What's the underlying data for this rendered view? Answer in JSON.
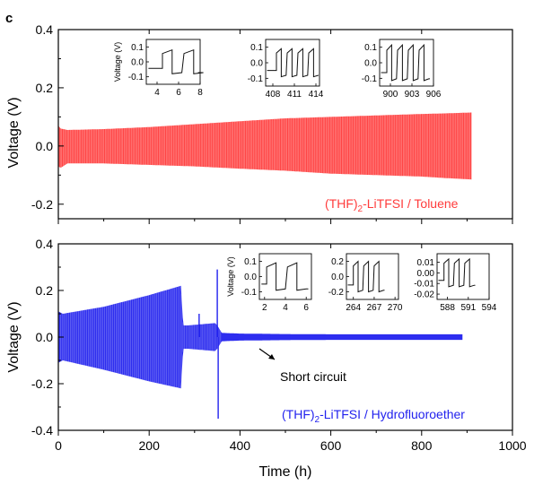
{
  "panel_label": "c",
  "x_axis": {
    "label": "Time (h)",
    "range": [
      0,
      1000
    ],
    "ticks": [
      0,
      200,
      400,
      600,
      800,
      1000
    ]
  },
  "chart_data": [
    {
      "type": "line",
      "ylabel": "Voltage (V)",
      "xlabel": "Time (h)",
      "xlim": [
        0,
        1000
      ],
      "ylim": [
        -0.25,
        0.4
      ],
      "yticks": [
        -0.2,
        0.0,
        0.2,
        0.4
      ],
      "yticklabels": [
        "-0.2",
        "0.0",
        "0.2",
        "0.4"
      ],
      "xticks": [
        0,
        200,
        400,
        600,
        800,
        1000
      ],
      "grid": false,
      "series": [
        {
          "name": "(THF)₂-LiTFSI / Toluene",
          "color": "#ff3b3b",
          "envelope": {
            "t": [
              0,
              5,
              20,
              100,
              200,
              300,
              400,
              500,
              600,
              700,
              800,
              850,
              910
            ],
            "v_upper": [
              0.07,
              0.06,
              0.055,
              0.058,
              0.065,
              0.075,
              0.085,
              0.095,
              0.1,
              0.105,
              0.11,
              0.112,
              0.115
            ],
            "v_lower": [
              -0.07,
              -0.075,
              -0.06,
              -0.06,
              -0.065,
              -0.07,
              -0.078,
              -0.085,
              -0.095,
              -0.1,
              -0.105,
              -0.11,
              -0.115
            ]
          }
        }
      ],
      "annotation": {
        "text": "(THF)",
        "sub": "2",
        "rest": "-LiTFSI / Toluene",
        "color": "#ff3b3b"
      },
      "insets": [
        {
          "ylabel": "Voltage (V)",
          "xticks": [
            4,
            6,
            8
          ],
          "xlim": [
            3,
            8
          ],
          "yticks": [
            0.1,
            0.0,
            -0.1
          ],
          "yticklabels": [
            "0.1",
            "0.0",
            "-0.1"
          ],
          "ylim": [
            -0.15,
            0.15
          ],
          "cycle_start": 4.5,
          "period": 2,
          "cycles": 2,
          "amp": 0.08
        },
        {
          "ylabel": "",
          "xticks": [
            408,
            411,
            414
          ],
          "xlim": [
            407,
            414.5
          ],
          "yticks": [
            0.1,
            0.0,
            -0.1
          ],
          "yticklabels": [
            "0.1",
            "0.0",
            "-0.1"
          ],
          "ylim": [
            -0.15,
            0.15
          ],
          "cycle_start": 408.5,
          "period": 1.5,
          "cycles": 4,
          "amp": 0.09
        },
        {
          "ylabel": "",
          "xticks": [
            900,
            903,
            906
          ],
          "xlim": [
            898.5,
            906
          ],
          "yticks": [
            0.1,
            0.0,
            -0.1
          ],
          "yticklabels": [
            "0.1",
            "0.0",
            "-0.1"
          ],
          "ylim": [
            -0.15,
            0.15
          ],
          "cycle_start": 899.5,
          "period": 1.5,
          "cycles": 4,
          "amp": 0.115
        }
      ]
    },
    {
      "type": "line",
      "ylabel": "Voltage (V)",
      "xlabel": "Time (h)",
      "xlim": [
        0,
        1000
      ],
      "ylim": [
        -0.4,
        0.4
      ],
      "yticks": [
        -0.4,
        -0.2,
        0.0,
        0.2,
        0.4
      ],
      "yticklabels": [
        "-0.4",
        "-0.2",
        "0.0",
        "0.2",
        "0.4"
      ],
      "xticks": [
        0,
        200,
        400,
        600,
        800,
        1000
      ],
      "xticklabels": [
        "0",
        "200",
        "400",
        "600",
        "800",
        "1000"
      ],
      "grid": false,
      "series": [
        {
          "name": "(THF)₂-LiTFSI / Hydrofluoroether",
          "color": "#2222ee",
          "envelope": {
            "t": [
              0,
              10,
              100,
              200,
              270,
              275,
              285,
              345,
              350,
              360,
              400,
              500,
              600,
              700,
              800,
              890
            ],
            "v_upper": [
              0.11,
              0.1,
              0.13,
              0.18,
              0.22,
              0.05,
              0.05,
              0.06,
              0.05,
              0.018,
              0.015,
              0.013,
              0.012,
              0.012,
              0.012,
              0.012
            ],
            "v_lower": [
              -0.11,
              -0.1,
              -0.14,
              -0.19,
              -0.22,
              -0.05,
              -0.05,
              -0.06,
              -0.05,
              -0.018,
              -0.015,
              -0.013,
              -0.012,
              -0.012,
              -0.012,
              -0.012
            ]
          },
          "spikes": [
            {
              "t": 310,
              "v": 0.1
            },
            {
              "t": 350,
              "v": 0.29
            },
            {
              "t": 352,
              "v": -0.35
            }
          ]
        }
      ],
      "annotation": {
        "text": "(THF)",
        "sub": "2",
        "rest": "-LiTFSI / Hydrofluoroether",
        "color": "#2222ee"
      },
      "short_circuit_label": "Short circuit",
      "insets": [
        {
          "ylabel": "Voltage (V)",
          "xticks": [
            2,
            4,
            6
          ],
          "xlim": [
            1.5,
            6.5
          ],
          "yticks": [
            0.1,
            0.0,
            -0.1
          ],
          "yticklabels": [
            "0.1",
            "0.0",
            "-0.1"
          ],
          "ylim": [
            -0.15,
            0.15
          ],
          "cycle_start": 2.2,
          "period": 2,
          "cycles": 2,
          "amp": 0.09
        },
        {
          "ylabel": "",
          "xticks": [
            264,
            267,
            270
          ],
          "xlim": [
            263,
            270.5
          ],
          "yticks": [
            0.2,
            0.0,
            -0.2
          ],
          "yticklabels": [
            "0.2",
            "0.0",
            "-0.2"
          ],
          "ylim": [
            -0.3,
            0.3
          ],
          "cycle_start": 264,
          "period": 1.5,
          "cycles": 3,
          "amp": 0.2
        },
        {
          "ylabel": "",
          "xticks": [
            588,
            591,
            594
          ],
          "xlim": [
            586.5,
            594
          ],
          "yticks": [
            0.01,
            0.0,
            -0.01,
            -0.02
          ],
          "yticklabels": [
            "0.01",
            "0.00",
            "-0.01",
            "-0.02"
          ],
          "ylim": [
            -0.025,
            0.018
          ],
          "cycle_start": 587.5,
          "period": 1.5,
          "cycles": 3,
          "amp": 0.013
        }
      ]
    }
  ]
}
